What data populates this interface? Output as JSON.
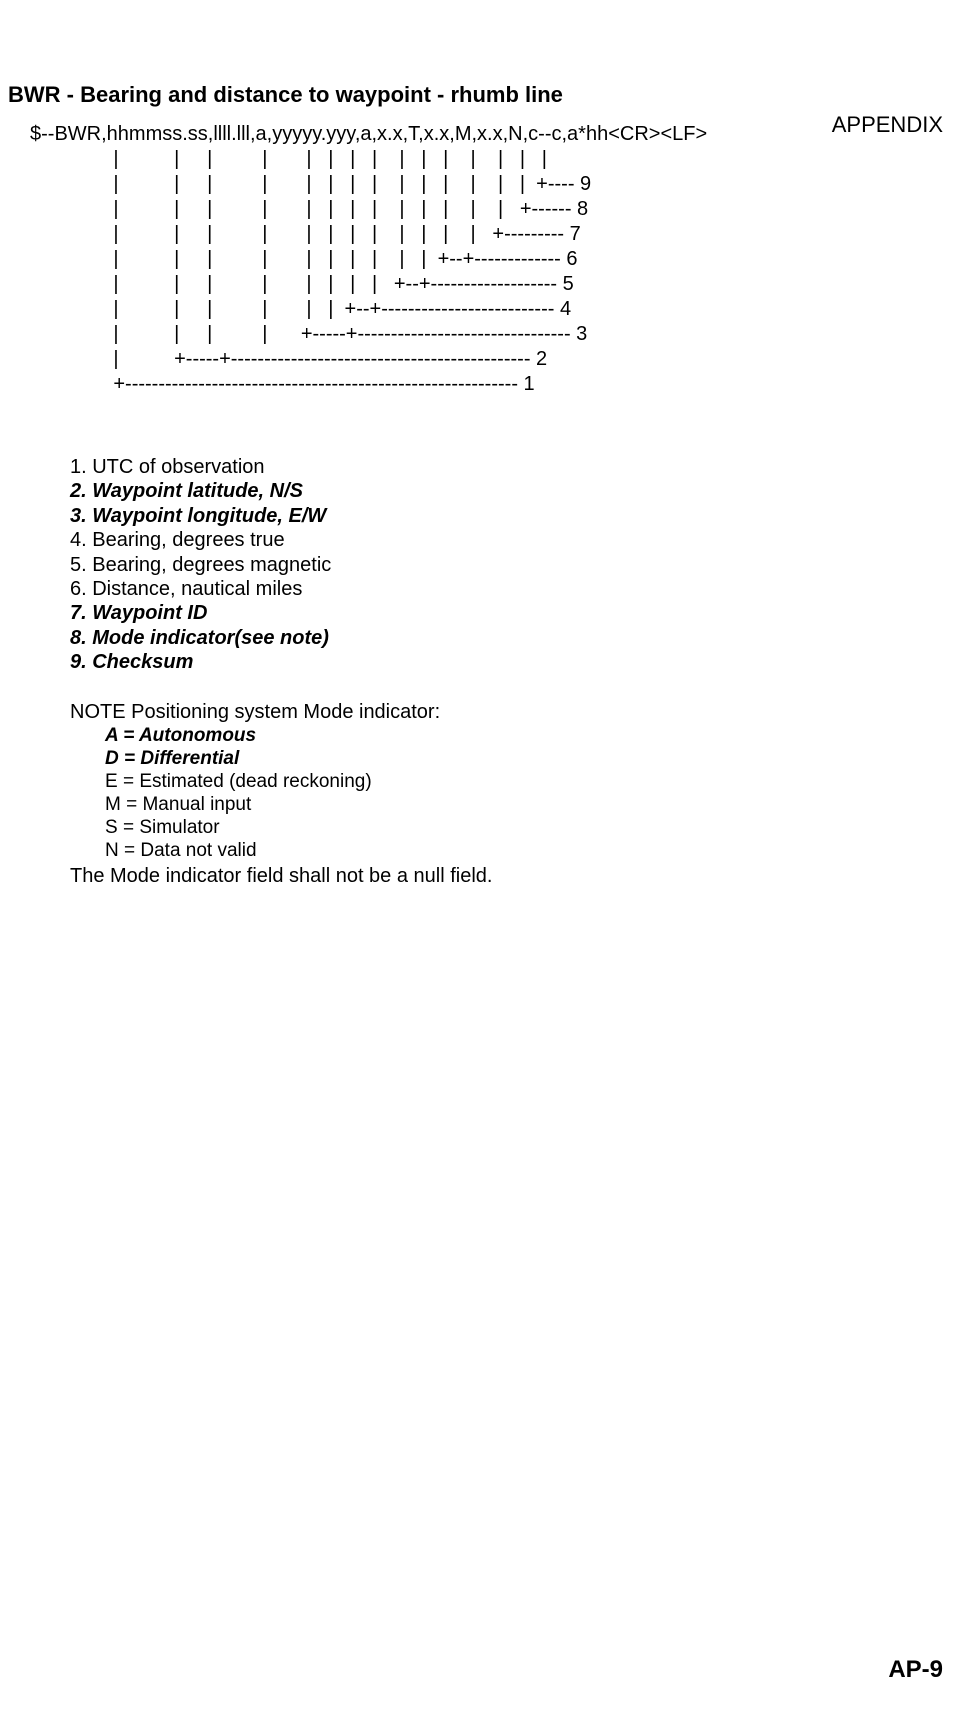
{
  "header": {
    "section": "APPENDIX"
  },
  "title": "BWR - Bearing and distance to waypoint - rhumb line",
  "diagram": {
    "l0": "$--BWR,hhmmss.ss,llll.lll,a,yyyyy.yyy,a,x.x,T,x.x,M,x.x,N,c--c,a*hh<CR><LF>",
    "l1": "               |          |     |         |       |   |   |   |    |   |   |    |    |   |   |",
    "l2": "               |          |     |         |       |   |   |   |    |   |   |    |    |   |  +---- 9",
    "l3": "               |          |     |         |       |   |   |   |    |   |   |    |    |   +------ 8",
    "l4": "               |          |     |         |       |   |   |   |    |   |   |    |   +--------- 7",
    "l5": "               |          |     |         |       |   |   |   |    |   |  +--+------------- 6",
    "l6": "               |          |     |         |       |   |   |   |   +--+------------------- 5",
    "l7": "               |          |     |         |       |   |  +--+-------------------------- 4",
    "l8": "               |          |     |         |      +-----+-------------------------------- 3",
    "l9": "               |          +-----+--------------------------------------------- 2",
    "l10": "               +----------------------------------------------------------- 1"
  },
  "fields": [
    {
      "text": "1. UTC of observation",
      "bold": false
    },
    {
      "text": "2. Waypoint latitude, N/S",
      "bold": true
    },
    {
      "text": "3. Waypoint longitude, E/W",
      "bold": true
    },
    {
      "text": "4. Bearing, degrees true",
      "bold": false
    },
    {
      "text": "5. Bearing, degrees magnetic",
      "bold": false
    },
    {
      "text": "6. Distance, nautical miles",
      "bold": false
    },
    {
      "text": "7. Waypoint ID",
      "bold": true
    },
    {
      "text": "8. Mode indicator(see note)",
      "bold": true
    },
    {
      "text": "9. Checksum",
      "bold": true
    }
  ],
  "note": {
    "label": "NOTE  Positioning system Mode indicator:",
    "items": [
      {
        "text": "A = Autonomous",
        "bold": true
      },
      {
        "text": "D = Differential",
        "bold": true
      },
      {
        "text": "E = Estimated (dead reckoning)",
        "bold": false
      },
      {
        "text": "M = Manual input",
        "bold": false
      },
      {
        "text": "S = Simulator",
        "bold": false
      },
      {
        "text": "N = Data not valid",
        "bold": false
      }
    ],
    "tail": "The Mode indicator field shall not be a null field."
  },
  "footer": {
    "page": "AP-9"
  }
}
